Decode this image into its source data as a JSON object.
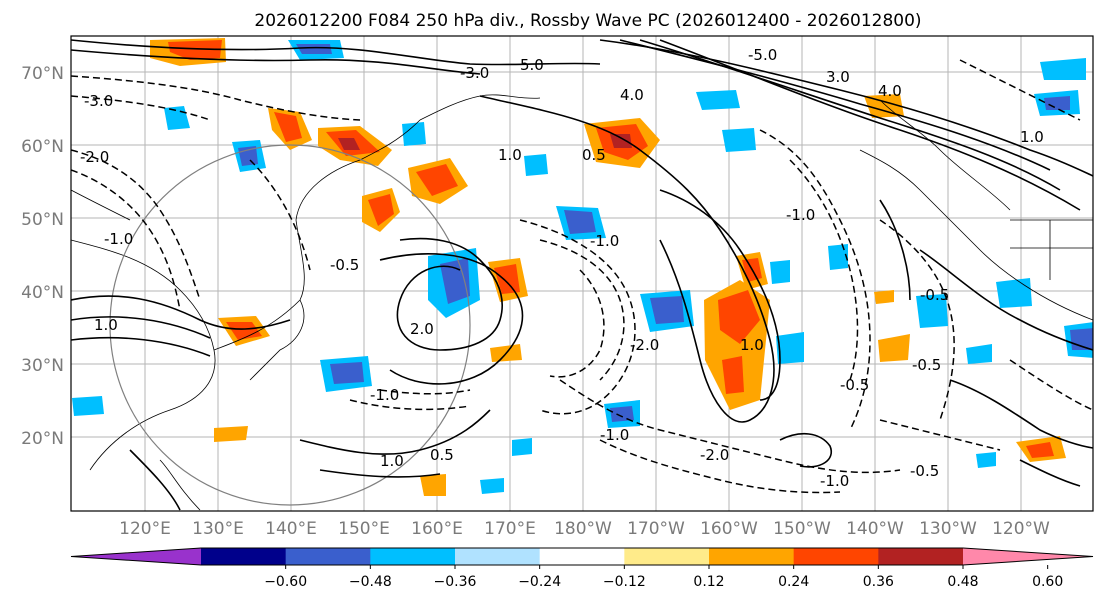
{
  "title": "2026012200 F084 250 hPa div., Rossby Wave PC (2026012400 - 2026012800)",
  "map": {
    "lat_labels": [
      "70°N",
      "60°N",
      "50°N",
      "40°N",
      "30°N",
      "20°N"
    ],
    "lon_labels": [
      "120°E",
      "130°E",
      "140°E",
      "150°E",
      "160°E",
      "170°E",
      "180°W",
      "170°W",
      "160°W",
      "150°W",
      "140°W",
      "130°W",
      "120°W"
    ],
    "contour_labels": [
      "-3.0",
      "5.0",
      "-3.0",
      "4.0",
      "-5.0",
      "3.0",
      "4.0",
      "0.5",
      "-2.0",
      "-1.0",
      "1.0",
      "-1.0",
      "1.0",
      "-0.5",
      "-1.0",
      "-2.0",
      "-1.0",
      "-1.0",
      "1.0",
      "-0.5",
      "-0.5",
      "1.0",
      "-2.0",
      "-0.5",
      "2.0",
      "-0.5",
      "-1.0",
      "1.0",
      "0.5"
    ]
  },
  "colorbar": {
    "ticks": [
      "−0.60",
      "−0.48",
      "−0.36",
      "−0.24",
      "−0.12",
      "0.12",
      "0.24",
      "0.36",
      "0.48",
      "0.60"
    ],
    "colors": [
      "#9932cc",
      "#00008b",
      "#3a5fcd",
      "#00bfff",
      "#b0e2ff",
      "#ffffff",
      "#ffeb8a",
      "#ffa500",
      "#ff4500",
      "#b22222",
      "#ff88aa"
    ]
  }
}
